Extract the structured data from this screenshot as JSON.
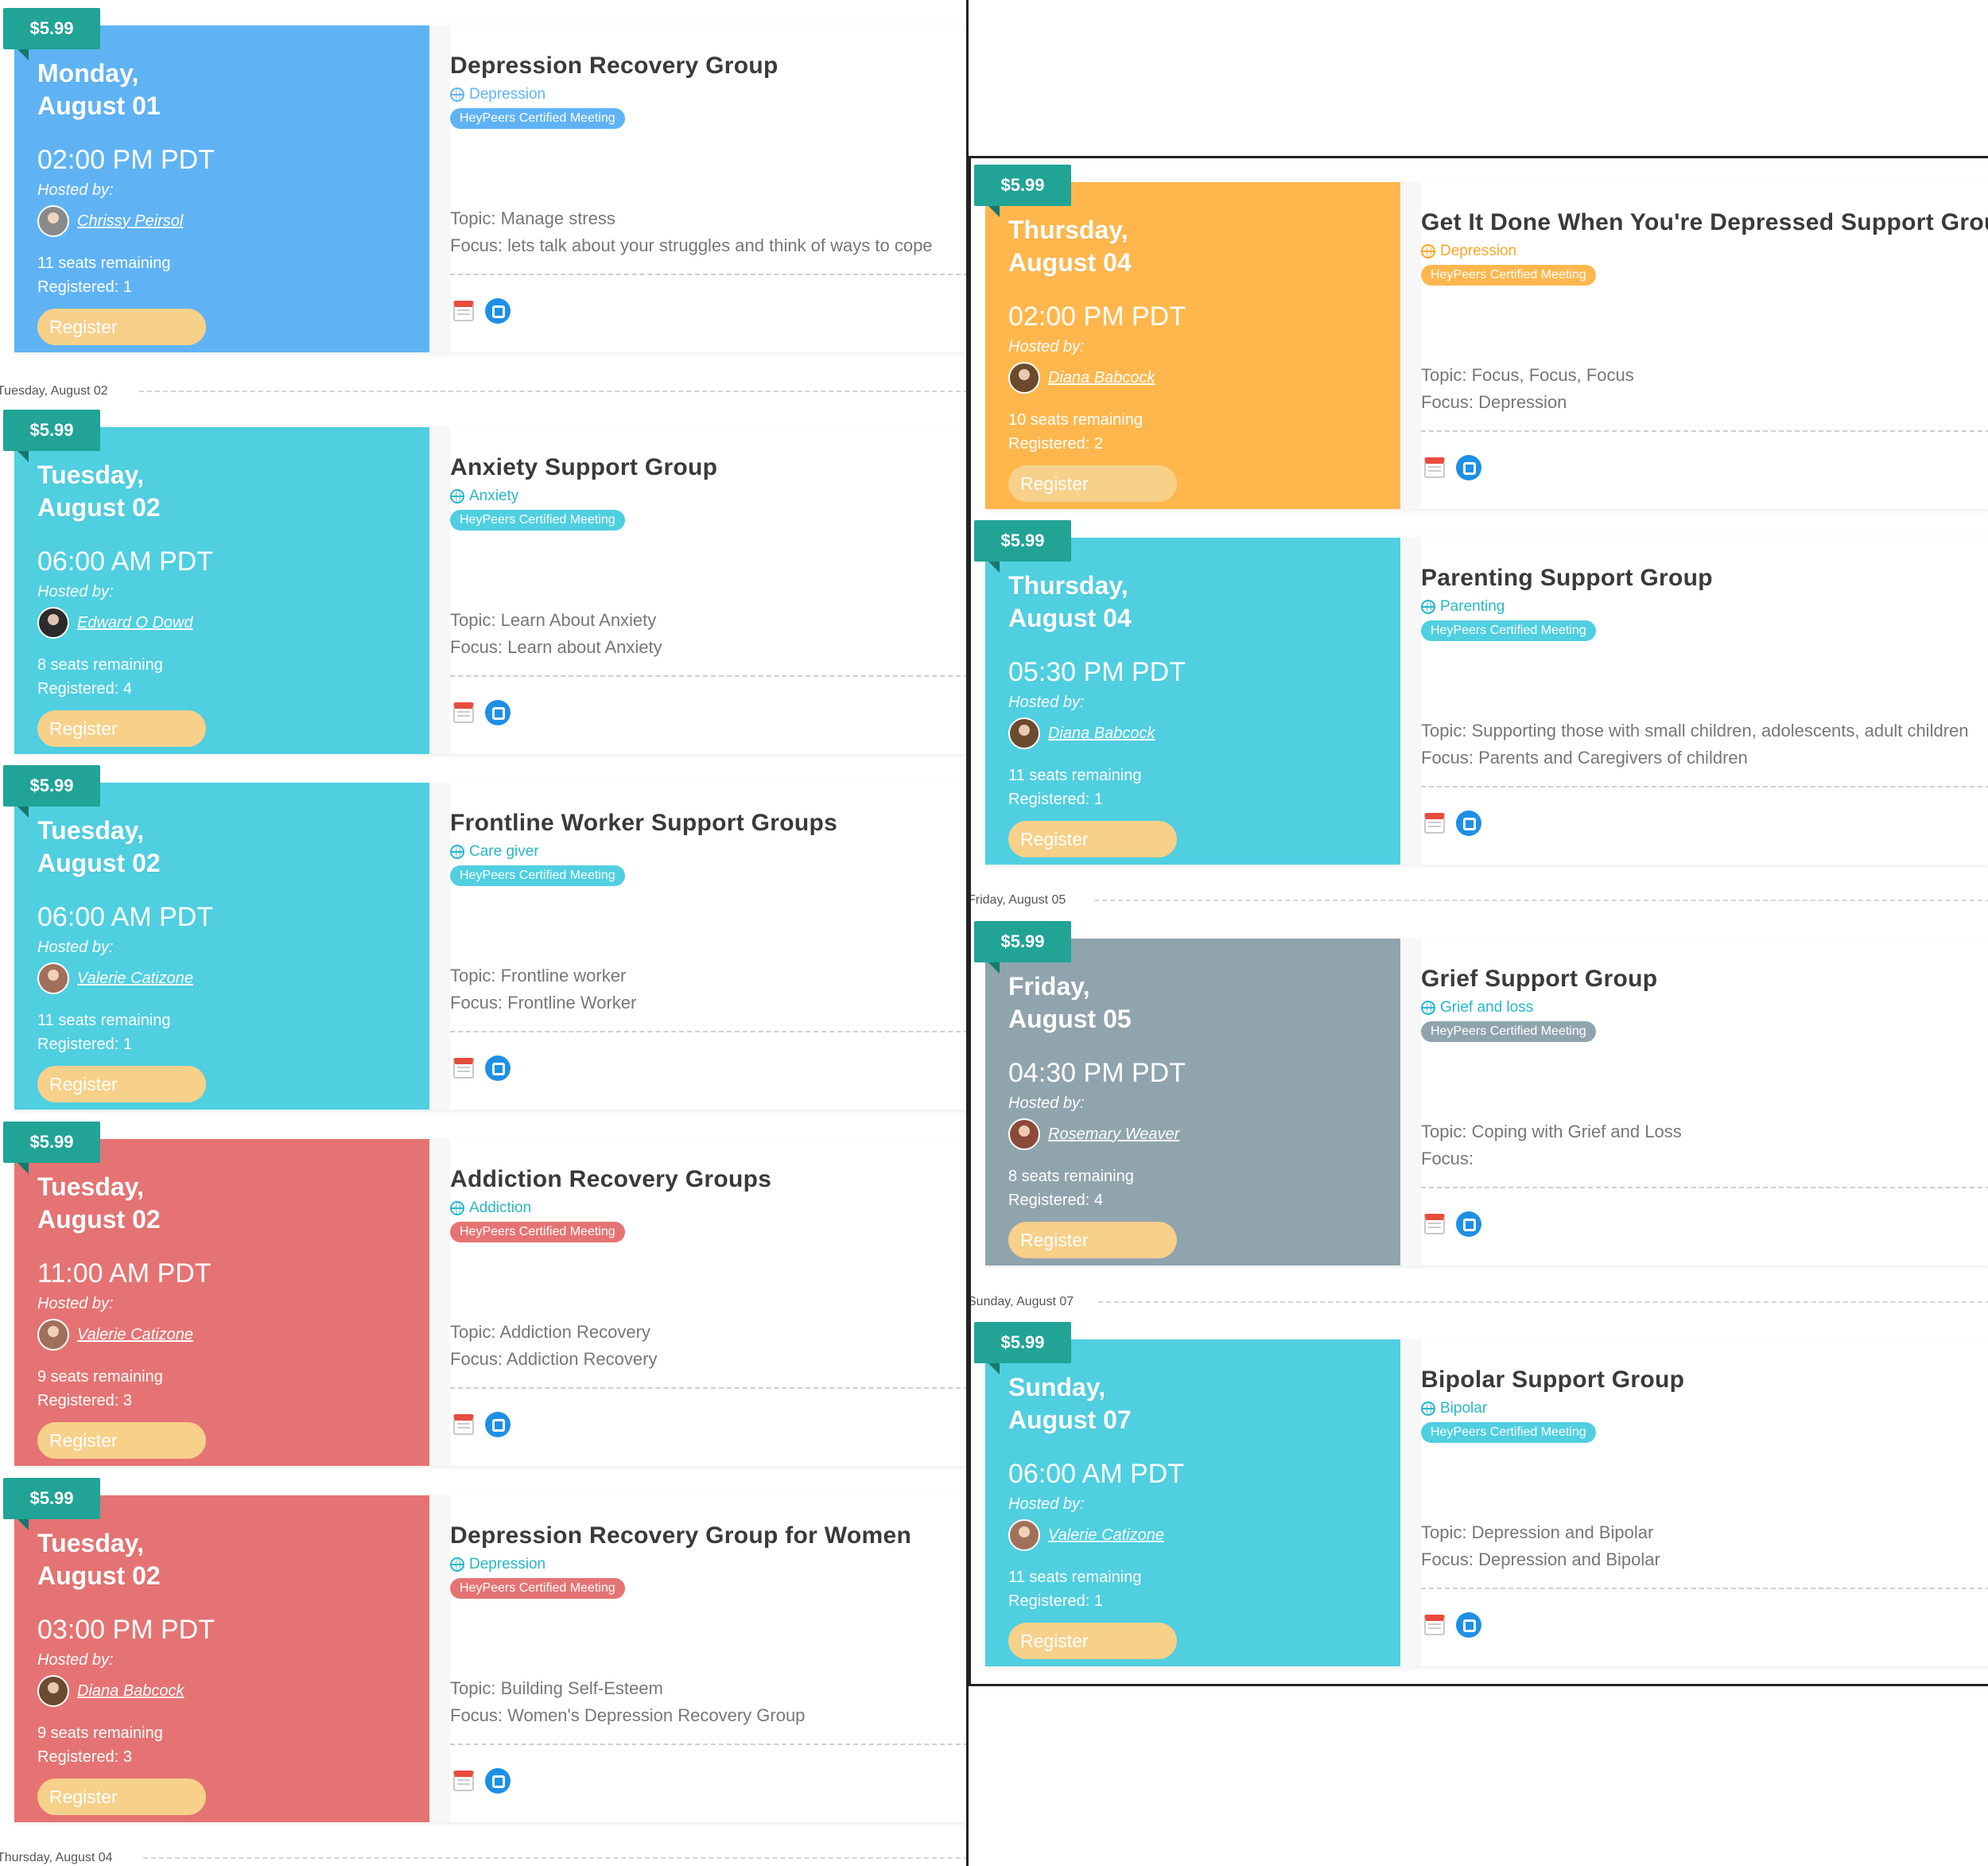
{
  "colors": {
    "price_tag": "#21a396",
    "register_button": "#f7d08a",
    "blue": "#5fb3f5",
    "cyan": "#4fcfe0",
    "red": "#e57373",
    "orange": "#ffb74d",
    "grey": "#90a4ae",
    "calendar_icon": "#e74c3c",
    "share_icon": "#1e8fe6"
  },
  "left": {
    "cards": [
      {
        "price": "$5.99",
        "day": "Monday,",
        "date": "August 01",
        "time": "02:00 PM PDT",
        "hosted_label": "Hosted by:",
        "host": "Chrissy Peirsol",
        "seats": "11 seats remaining",
        "registered": "Registered: 1",
        "register_label": "Register",
        "title": "Depression Recovery Group",
        "category": "Depression",
        "badge": "HeyPeers Certified Meeting",
        "topic": "Topic: Manage stress",
        "focus": "Focus: lets talk about your struggles and think of ways to cope",
        "calendar_icon": "calendar-icon",
        "share_icon": "share-icon"
      },
      {
        "price": "$5.99",
        "day": "Tuesday,",
        "date": "August 02",
        "time": "06:00 AM PDT",
        "hosted_label": "Hosted by:",
        "host": "Edward O Dowd",
        "seats": "8 seats remaining",
        "registered": "Registered: 4",
        "register_label": "Register",
        "title": "Anxiety Support Group",
        "category": "Anxiety",
        "badge": "HeyPeers Certified Meeting",
        "topic": "Topic: Learn About Anxiety",
        "focus": "Focus: Learn about Anxiety",
        "calendar_icon": "calendar-icon",
        "share_icon": "share-icon"
      },
      {
        "price": "$5.99",
        "day": "Tuesday,",
        "date": "August 02",
        "time": "06:00 AM PDT",
        "hosted_label": "Hosted by:",
        "host": "Valerie Catizone",
        "seats": "11 seats remaining",
        "registered": "Registered: 1",
        "register_label": "Register",
        "title": "Frontline Worker Support Groups",
        "category": "Care giver",
        "badge": "HeyPeers Certified Meeting",
        "topic": "Topic: Frontline worker",
        "focus": "Focus: Frontline Worker",
        "calendar_icon": "calendar-icon",
        "share_icon": "share-icon"
      },
      {
        "price": "$5.99",
        "day": "Tuesday,",
        "date": "August 02",
        "time": "11:00 AM PDT",
        "hosted_label": "Hosted by:",
        "host": "Valerie Catizone",
        "seats": "9 seats remaining",
        "registered": "Registered: 3",
        "register_label": "Register",
        "title": "Addiction Recovery Groups",
        "category": "Addiction",
        "badge": "HeyPeers Certified Meeting",
        "topic": "Topic: Addiction Recovery",
        "focus": "Focus: Addiction Recovery",
        "calendar_icon": "calendar-icon",
        "share_icon": "share-icon"
      },
      {
        "price": "$5.99",
        "day": "Tuesday,",
        "date": "August 02",
        "time": "03:00 PM PDT",
        "hosted_label": "Hosted by:",
        "host": "Diana Babcock",
        "seats": "9 seats remaining",
        "registered": "Registered: 3",
        "register_label": "Register",
        "title": "Depression Recovery Group for Women",
        "category": "Depression",
        "badge": "HeyPeers Certified Meeting",
        "topic": "Topic: Building Self-Esteem",
        "focus": "Focus: Women's Depression Recovery Group",
        "calendar_icon": "calendar-icon",
        "share_icon": "share-icon"
      }
    ],
    "separators": [
      "Tuesday, August 02",
      "Thursday, August 04"
    ]
  },
  "right": {
    "cards": [
      {
        "price": "$5.99",
        "day": "Thursday,",
        "date": "August 04",
        "time": "02:00 PM PDT",
        "hosted_label": "Hosted by:",
        "host": "Diana Babcock",
        "seats": "10 seats remaining",
        "registered": "Registered: 2",
        "register_label": "Register",
        "title": "Get It Done When You're Depressed Support Group",
        "category": "Depression",
        "badge": "HeyPeers Certified Meeting",
        "topic": "Topic: Focus, Focus, Focus",
        "focus": "Focus: Depression",
        "calendar_icon": "calendar-icon",
        "share_icon": "share-icon"
      },
      {
        "price": "$5.99",
        "day": "Thursday,",
        "date": "August 04",
        "time": "05:30 PM PDT",
        "hosted_label": "Hosted by:",
        "host": "Diana Babcock",
        "seats": "11 seats remaining",
        "registered": "Registered: 1",
        "register_label": "Register",
        "title": "Parenting Support Group",
        "category": "Parenting",
        "badge": "HeyPeers Certified Meeting",
        "topic": "Topic: Supporting those with small children, adolescents, adult children",
        "focus": "Focus: Parents and Caregivers of children",
        "calendar_icon": "calendar-icon",
        "share_icon": "share-icon"
      },
      {
        "price": "$5.99",
        "day": "Friday,",
        "date": "August 05",
        "time": "04:30 PM PDT",
        "hosted_label": "Hosted by:",
        "host": "Rosemary Weaver",
        "seats": "8 seats remaining",
        "registered": "Registered: 4",
        "register_label": "Register",
        "title": "Grief Support Group",
        "category": "Grief and loss",
        "badge": "HeyPeers Certified Meeting",
        "topic": "Topic: Coping with Grief and Loss",
        "focus": "Focus:",
        "calendar_icon": "calendar-icon",
        "share_icon": "share-icon"
      },
      {
        "price": "$5.99",
        "day": "Sunday,",
        "date": "August 07",
        "time": "06:00 AM PDT",
        "hosted_label": "Hosted by:",
        "host": "Valerie Catizone",
        "seats": "11 seats remaining",
        "registered": "Registered: 1",
        "register_label": "Register",
        "title": "Bipolar Support Group",
        "category": "Bipolar",
        "badge": "HeyPeers Certified Meeting",
        "topic": "Topic: Depression and Bipolar",
        "focus": "Focus: Depression and Bipolar",
        "calendar_icon": "calendar-icon",
        "share_icon": "share-icon"
      }
    ],
    "separators": [
      "Friday, August 05",
      "Sunday, August 07"
    ]
  }
}
